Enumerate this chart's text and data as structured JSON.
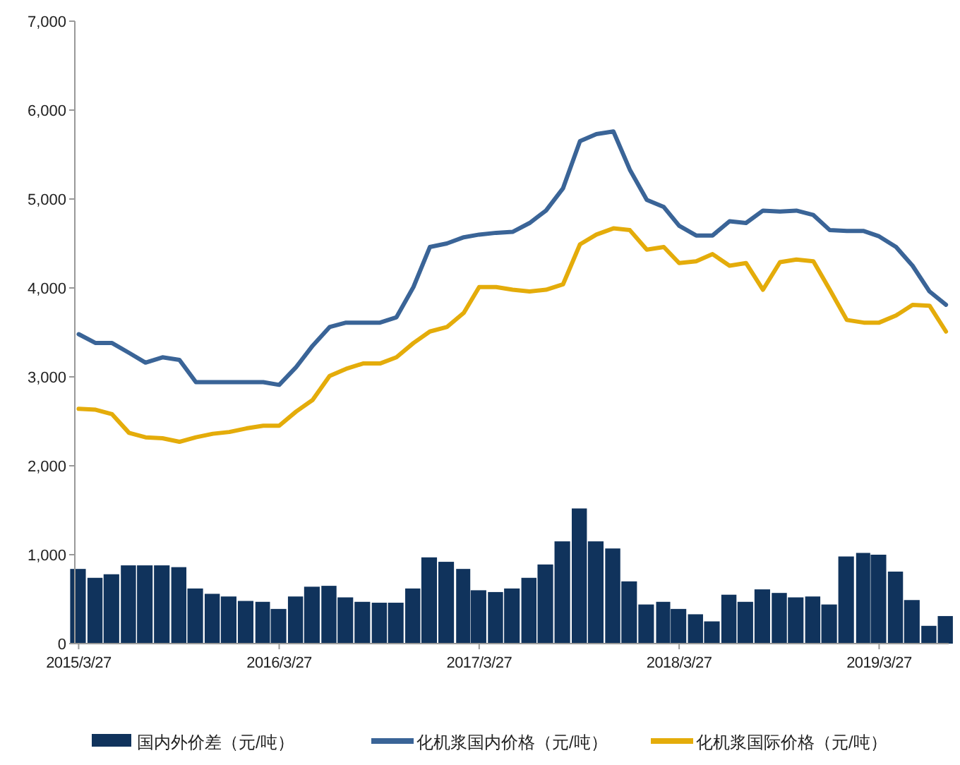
{
  "chart_data": {
    "type": "bar",
    "x": [
      "2015-03-27",
      "2015-04-27",
      "2015-05-27",
      "2015-06-27",
      "2015-07-27",
      "2015-08-27",
      "2015-09-27",
      "2015-10-27",
      "2015-11-27",
      "2015-12-27",
      "2016-01-27",
      "2016-02-27",
      "2016-03-27",
      "2016-04-27",
      "2016-05-27",
      "2016-06-27",
      "2016-07-27",
      "2016-08-27",
      "2016-09-27",
      "2016-10-27",
      "2016-11-27",
      "2016-12-27",
      "2017-01-27",
      "2017-02-27",
      "2017-03-27",
      "2017-04-27",
      "2017-05-27",
      "2017-06-27",
      "2017-07-27",
      "2017-08-27",
      "2017-09-27",
      "2017-10-27",
      "2017-11-27",
      "2017-12-27",
      "2018-01-27",
      "2018-02-27",
      "2018-03-27",
      "2018-04-27",
      "2018-05-27",
      "2018-06-27",
      "2018-07-27",
      "2018-08-27",
      "2018-09-27",
      "2018-10-27",
      "2018-11-27",
      "2018-12-27",
      "2019-01-27",
      "2019-02-27",
      "2019-03-27",
      "2019-04-27",
      "2019-05-27",
      "2019-06-27",
      "2019-07-27"
    ],
    "series": [
      {
        "name": "国内外价差（元/吨）",
        "color": "#10335c",
        "values": [
          840,
          740,
          780,
          880,
          880,
          880,
          860,
          620,
          560,
          530,
          480,
          470,
          390,
          530,
          640,
          650,
          520,
          470,
          460,
          460,
          620,
          970,
          920,
          840,
          600,
          580,
          620,
          740,
          890,
          1150,
          1520,
          1150,
          1070,
          700,
          440,
          470,
          390,
          330,
          250,
          550,
          470,
          610,
          570,
          520,
          530,
          440,
          980,
          1020,
          1000,
          810,
          490,
          200,
          310
        ]
      },
      {
        "name": "化机浆国内价格（元/吨）",
        "type": "line",
        "color": "#3a6497",
        "values": [
          3480,
          3380,
          3380,
          3270,
          3160,
          3220,
          3190,
          2940,
          2940,
          2940,
          2940,
          2940,
          2910,
          3110,
          3350,
          3560,
          3610,
          3610,
          3610,
          3670,
          4010,
          4460,
          4500,
          4570,
          4600,
          4620,
          4630,
          4730,
          4870,
          5120,
          5650,
          5730,
          5760,
          5330,
          4990,
          4910,
          4700,
          4590,
          4590,
          4750,
          4730,
          4870,
          4860,
          4870,
          4820,
          4650,
          4640,
          4640,
          4580,
          4460,
          4250,
          3960,
          3810
        ]
      },
      {
        "name": "化机浆国际价格（元/吨）",
        "type": "line",
        "color": "#e4ac0a",
        "values": [
          2640,
          2630,
          2580,
          2370,
          2320,
          2310,
          2270,
          2320,
          2360,
          2380,
          2420,
          2450,
          2450,
          2610,
          2740,
          3010,
          3090,
          3150,
          3150,
          3220,
          3380,
          3510,
          3560,
          3720,
          4010,
          4010,
          3980,
          3960,
          3980,
          4040,
          4490,
          4600,
          4670,
          4650,
          4430,
          4460,
          4280,
          4300,
          4380,
          4250,
          4280,
          3980,
          4290,
          4320,
          4300,
          3980,
          3640,
          3610,
          3610,
          3690,
          3810,
          3800,
          3510
        ]
      }
    ],
    "xlim": [
      "2015-03-20",
      "2019-08-01"
    ],
    "xticks": [
      {
        "value": "2015-03-27",
        "label": "2015/3/27"
      },
      {
        "value": "2016-03-27",
        "label": "2016/3/27"
      },
      {
        "value": "2017-03-27",
        "label": "2017/3/27"
      },
      {
        "value": "2018-03-27",
        "label": "2018/3/27"
      },
      {
        "value": "2019-03-27",
        "label": "2019/3/27"
      }
    ],
    "ylim": [
      0,
      7000
    ],
    "yticks": [
      0,
      {
        "value": 1000,
        "label": "1,000"
      },
      {
        "value": 2000,
        "label": "2,000"
      },
      {
        "value": 3000,
        "label": "3,000"
      },
      {
        "value": 4000,
        "label": "4,000"
      },
      {
        "value": 5000,
        "label": "5,000"
      },
      {
        "value": 6000,
        "label": "6,000"
      },
      {
        "value": 7000,
        "label": "7,000"
      }
    ],
    "grid": false,
    "legend": "bottom"
  }
}
